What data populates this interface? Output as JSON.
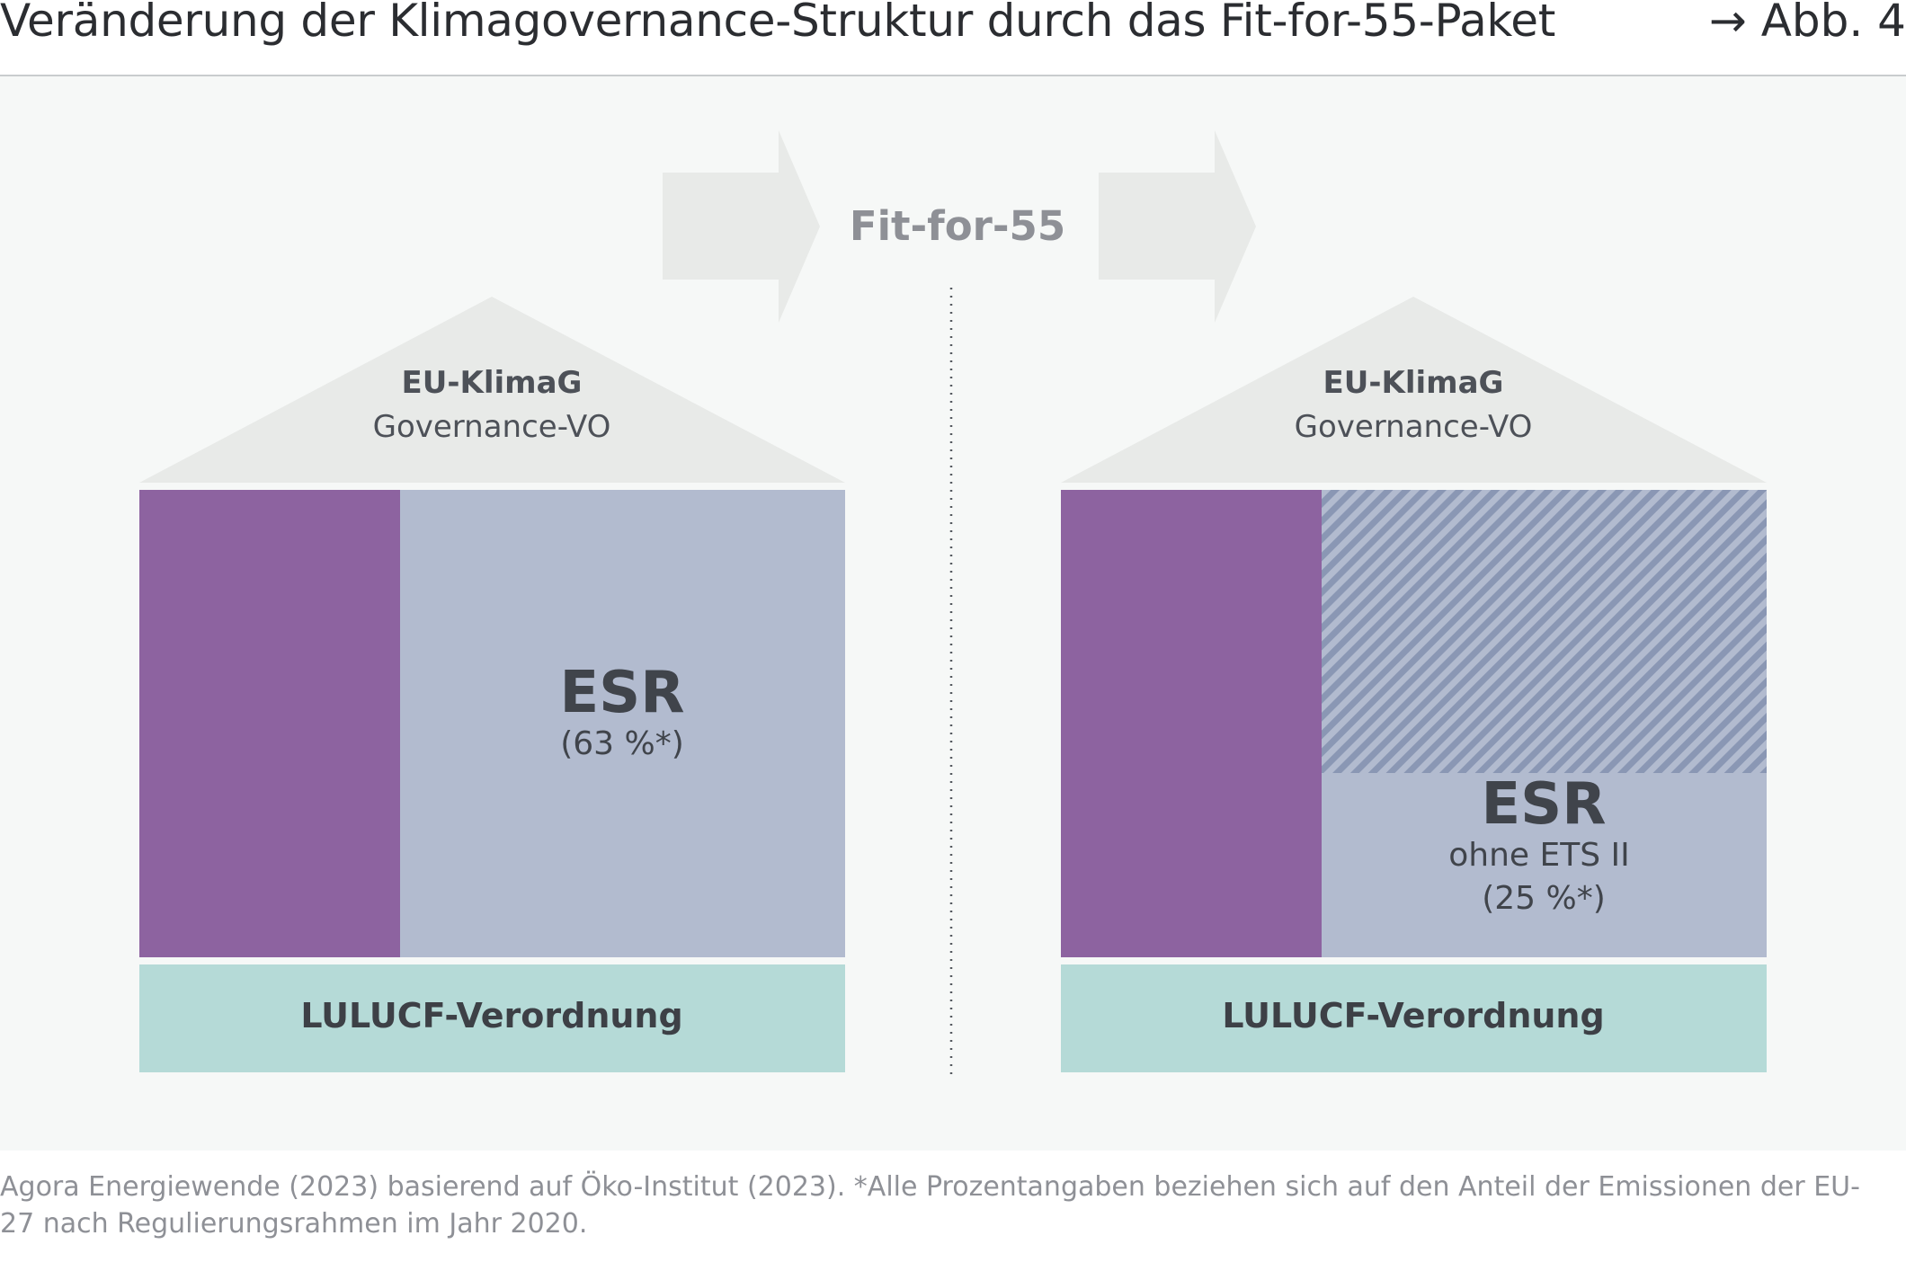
{
  "header": {
    "title": "Veränderung der Klimagovernance-Struktur durch das Fit-for-55-Paket",
    "figure_ref": "→ Abb. 4"
  },
  "transition": {
    "label": "Fit-for-55"
  },
  "before": {
    "roof_title": "EU-KlimaG",
    "roof_subtitle": "Governance-VO",
    "esr_title": "ESR",
    "esr_share": "(63 %*)",
    "base_label": "LULUCF-Verordnung"
  },
  "after": {
    "roof_title": "EU-KlimaG",
    "roof_subtitle": "Governance-VO",
    "esr_title": "ESR",
    "esr_subtitle": "ohne ETS II",
    "esr_share": "(25 %*)",
    "base_label": "LULUCF-Verordnung"
  },
  "footnote": {
    "text": "Agora Energiewende (2023) basierend auf Öko-Institut (2023). *Alle Prozentangaben beziehen sich auf den Anteil der Emissionen der EU-27 nach Regulierungsrahmen im Jahr 2020."
  },
  "colors": {
    "purple": "#8d63a0",
    "esr_blue": "#b2bbcf",
    "hatch_blue": "#8a97b4",
    "lulucf": "#b5dad7",
    "roof": "#e8eae8",
    "arrow": "#e8eae8",
    "panel": "#f6f8f7"
  }
}
